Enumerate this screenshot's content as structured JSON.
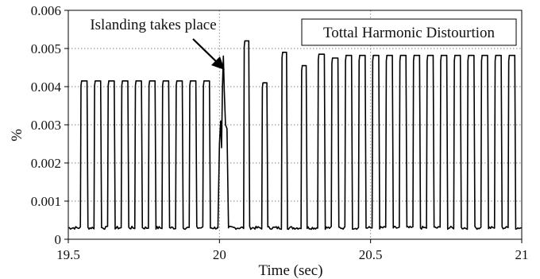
{
  "chart_data": {
    "type": "line",
    "title": "",
    "xlabel": "Time (sec)",
    "ylabel": "%",
    "xlim": [
      19.5,
      21
    ],
    "ylim": [
      0,
      0.006
    ],
    "x_ticks": [
      19.5,
      20,
      20.5,
      21
    ],
    "x_tick_labels": [
      "19.5",
      "20",
      "20.5",
      "21"
    ],
    "y_ticks": [
      0,
      0.001,
      0.002,
      0.003,
      0.004,
      0.005,
      0.006
    ],
    "y_tick_labels": [
      "0",
      "0.001",
      "0.002",
      "0.003",
      "0.004",
      "0.005",
      "0.006"
    ],
    "grid": "dotted",
    "legend_position": "top-right",
    "series": [
      {
        "name": "Tottal Harmonic Distourtion",
        "color": "#000000",
        "baseline": 0.0003,
        "pulses": [
          {
            "start": 19.54,
            "end": 19.565,
            "peak": 0.00415
          },
          {
            "start": 19.585,
            "end": 19.61,
            "peak": 0.00415
          },
          {
            "start": 19.63,
            "end": 19.655,
            "peak": 0.00415
          },
          {
            "start": 19.675,
            "end": 19.7,
            "peak": 0.00415
          },
          {
            "start": 19.72,
            "end": 19.745,
            "peak": 0.00415
          },
          {
            "start": 19.765,
            "end": 19.79,
            "peak": 0.00415
          },
          {
            "start": 19.81,
            "end": 19.835,
            "peak": 0.00415
          },
          {
            "start": 19.855,
            "end": 19.88,
            "peak": 0.00415
          },
          {
            "start": 19.9,
            "end": 19.925,
            "peak": 0.00415
          },
          {
            "start": 19.945,
            "end": 19.97,
            "peak": 0.00415
          },
          {
            "start": 20.08,
            "end": 20.1,
            "peak": 0.0052
          },
          {
            "start": 20.14,
            "end": 20.16,
            "peak": 0.0041
          },
          {
            "start": 20.205,
            "end": 20.225,
            "peak": 0.0049
          },
          {
            "start": 20.27,
            "end": 20.29,
            "peak": 0.00455
          },
          {
            "start": 20.325,
            "end": 20.35,
            "peak": 0.00485
          },
          {
            "start": 20.37,
            "end": 20.395,
            "peak": 0.00475
          },
          {
            "start": 20.415,
            "end": 20.44,
            "peak": 0.00482
          },
          {
            "start": 20.46,
            "end": 20.485,
            "peak": 0.00482
          },
          {
            "start": 20.505,
            "end": 20.53,
            "peak": 0.00482
          },
          {
            "start": 20.55,
            "end": 20.575,
            "peak": 0.00482
          },
          {
            "start": 20.595,
            "end": 20.62,
            "peak": 0.00482
          },
          {
            "start": 20.64,
            "end": 20.665,
            "peak": 0.00482
          },
          {
            "start": 20.685,
            "end": 20.71,
            "peak": 0.00482
          },
          {
            "start": 20.73,
            "end": 20.755,
            "peak": 0.00482
          },
          {
            "start": 20.775,
            "end": 20.8,
            "peak": 0.00482
          },
          {
            "start": 20.82,
            "end": 20.845,
            "peak": 0.00482
          },
          {
            "start": 20.865,
            "end": 20.89,
            "peak": 0.00482
          },
          {
            "start": 20.91,
            "end": 20.935,
            "peak": 0.00482
          },
          {
            "start": 20.955,
            "end": 20.98,
            "peak": 0.00482
          }
        ],
        "islanding_transient": [
          [
            19.995,
            0.0003
          ],
          [
            20.0,
            0.0025
          ],
          [
            20.004,
            0.0031
          ],
          [
            20.007,
            0.0024
          ],
          [
            20.01,
            0.004
          ],
          [
            20.013,
            0.0048
          ],
          [
            20.016,
            0.0039
          ],
          [
            20.02,
            0.003
          ],
          [
            20.025,
            0.0029
          ],
          [
            20.03,
            0.0003
          ]
        ]
      }
    ],
    "annotations": [
      {
        "text": "Islanding takes place",
        "points_to": [
          20.01,
          0.0042
        ]
      }
    ]
  }
}
